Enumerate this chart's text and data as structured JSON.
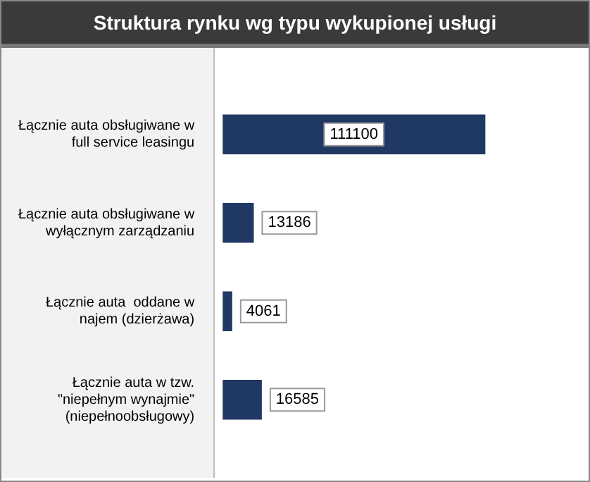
{
  "chart_data": {
    "type": "bar",
    "orientation": "horizontal",
    "title": "Struktura rynku wg typu wykupionej usługi",
    "categories": [
      "Łącznie auta obsługiwane w full service leasingu",
      "Łącznie auta obsługiwane w wyłącznym zarządzaniu",
      "Łącznie auta  oddane w najem (dzierżawa)",
      "Łącznie auta w tzw. \"niepełnym wynajmie\" (niepełnoobsługowy)"
    ],
    "values": [
      111100,
      13186,
      4061,
      16585
    ],
    "color": "#1f3864",
    "data_labels": true
  }
}
